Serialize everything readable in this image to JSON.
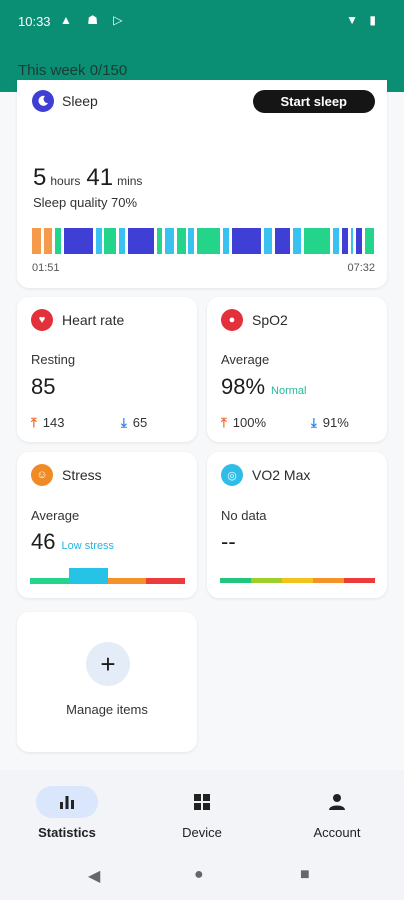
{
  "status_bar": {
    "time": "10:33",
    "icons_left": "▲ ☗ ▷",
    "icons_right": "▼ ▮"
  },
  "header": {
    "week": "This week 0/150"
  },
  "sleep": {
    "title": "Sleep",
    "button": "Start sleep",
    "hours": "5",
    "hours_unit": "hours",
    "mins": "41",
    "mins_unit": "mins",
    "quality": "Sleep quality 70%",
    "start_time": "01:51",
    "end_time": "07:32",
    "segments": [
      {
        "w": 3,
        "c": "#f59a4b"
      },
      {
        "w": 1,
        "c": "#ffffff"
      },
      {
        "w": 3,
        "c": "#f59a4b"
      },
      {
        "w": 1,
        "c": "#ffffff"
      },
      {
        "w": 2,
        "c": "#23d48a"
      },
      {
        "w": 1,
        "c": "#ffffff"
      },
      {
        "w": 10,
        "c": "#3f3fd6"
      },
      {
        "w": 1,
        "c": "#ffffff"
      },
      {
        "w": 2,
        "c": "#39c1f0"
      },
      {
        "w": 1,
        "c": "#ffffff"
      },
      {
        "w": 4,
        "c": "#23d48a"
      },
      {
        "w": 1,
        "c": "#ffffff"
      },
      {
        "w": 2,
        "c": "#39c1f0"
      },
      {
        "w": 1,
        "c": "#ffffff"
      },
      {
        "w": 9,
        "c": "#3f3fd6"
      },
      {
        "w": 1,
        "c": "#ffffff"
      },
      {
        "w": 2,
        "c": "#23d48a"
      },
      {
        "w": 1,
        "c": "#ffffff"
      },
      {
        "w": 3,
        "c": "#39c1f0"
      },
      {
        "w": 1,
        "c": "#ffffff"
      },
      {
        "w": 3,
        "c": "#23d48a"
      },
      {
        "w": 1,
        "c": "#ffffff"
      },
      {
        "w": 2,
        "c": "#39c1f0"
      },
      {
        "w": 1,
        "c": "#ffffff"
      },
      {
        "w": 8,
        "c": "#23d48a"
      },
      {
        "w": 1,
        "c": "#ffffff"
      },
      {
        "w": 2,
        "c": "#39c1f0"
      },
      {
        "w": 1,
        "c": "#ffffff"
      },
      {
        "w": 10,
        "c": "#3f3fd6"
      },
      {
        "w": 1,
        "c": "#ffffff"
      },
      {
        "w": 3,
        "c": "#39c1f0"
      },
      {
        "w": 1,
        "c": "#ffffff"
      },
      {
        "w": 5,
        "c": "#3f3fd6"
      },
      {
        "w": 1,
        "c": "#ffffff"
      },
      {
        "w": 3,
        "c": "#39c1f0"
      },
      {
        "w": 1,
        "c": "#ffffff"
      },
      {
        "w": 9,
        "c": "#23d48a"
      },
      {
        "w": 1,
        "c": "#ffffff"
      },
      {
        "w": 2,
        "c": "#39c1f0"
      },
      {
        "w": 1,
        "c": "#ffffff"
      },
      {
        "w": 2,
        "c": "#3f3fd6"
      },
      {
        "w": 1,
        "c": "#ffffff"
      },
      {
        "w": 1,
        "c": "#39c1f0"
      },
      {
        "w": 1,
        "c": "#ffffff"
      },
      {
        "w": 2,
        "c": "#3f3fd6"
      },
      {
        "w": 1,
        "c": "#ffffff"
      },
      {
        "w": 3,
        "c": "#23d48a"
      }
    ]
  },
  "heart_rate": {
    "title": "Heart rate",
    "label": "Resting",
    "value": "85",
    "high": "143",
    "low": "65"
  },
  "spo2": {
    "title": "SpO2",
    "label": "Average",
    "value": "98%",
    "tag": "Normal",
    "high": "100%",
    "low": "91%"
  },
  "stress": {
    "title": "Stress",
    "label": "Average",
    "value": "46",
    "tag": "Low stress"
  },
  "vo2": {
    "title": "VO2 Max",
    "label": "No data",
    "value": "--"
  },
  "manage": {
    "label": "Manage items"
  },
  "nav": {
    "statistics": "Statistics",
    "device": "Device",
    "account": "Account"
  },
  "colors": {
    "primary": "#0a8f74",
    "tag_green": "#27b89a",
    "tag_blue": "#27b6e0"
  }
}
